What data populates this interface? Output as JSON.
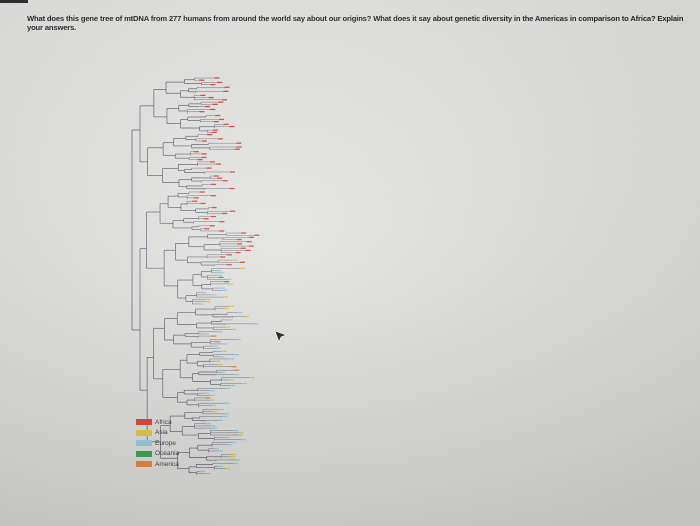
{
  "question": {
    "text": "What does this gene tree of mtDNA from 277 humans from around the world say about our origins? What does it say about genetic diversity in the Americas in comparison to Africa? Explain your answers."
  },
  "legend": {
    "items": [
      {
        "label": "Africa",
        "color": "#d63a2f"
      },
      {
        "label": "Asia",
        "color": "#d8c23b"
      },
      {
        "label": "Europe",
        "color": "#8fc4d8"
      },
      {
        "label": "Oceania",
        "color": "#2f9a52"
      },
      {
        "label": "America",
        "color": "#e07b2e"
      }
    ]
  },
  "icons": {
    "cursor": "mouse-pointer-icon"
  }
}
